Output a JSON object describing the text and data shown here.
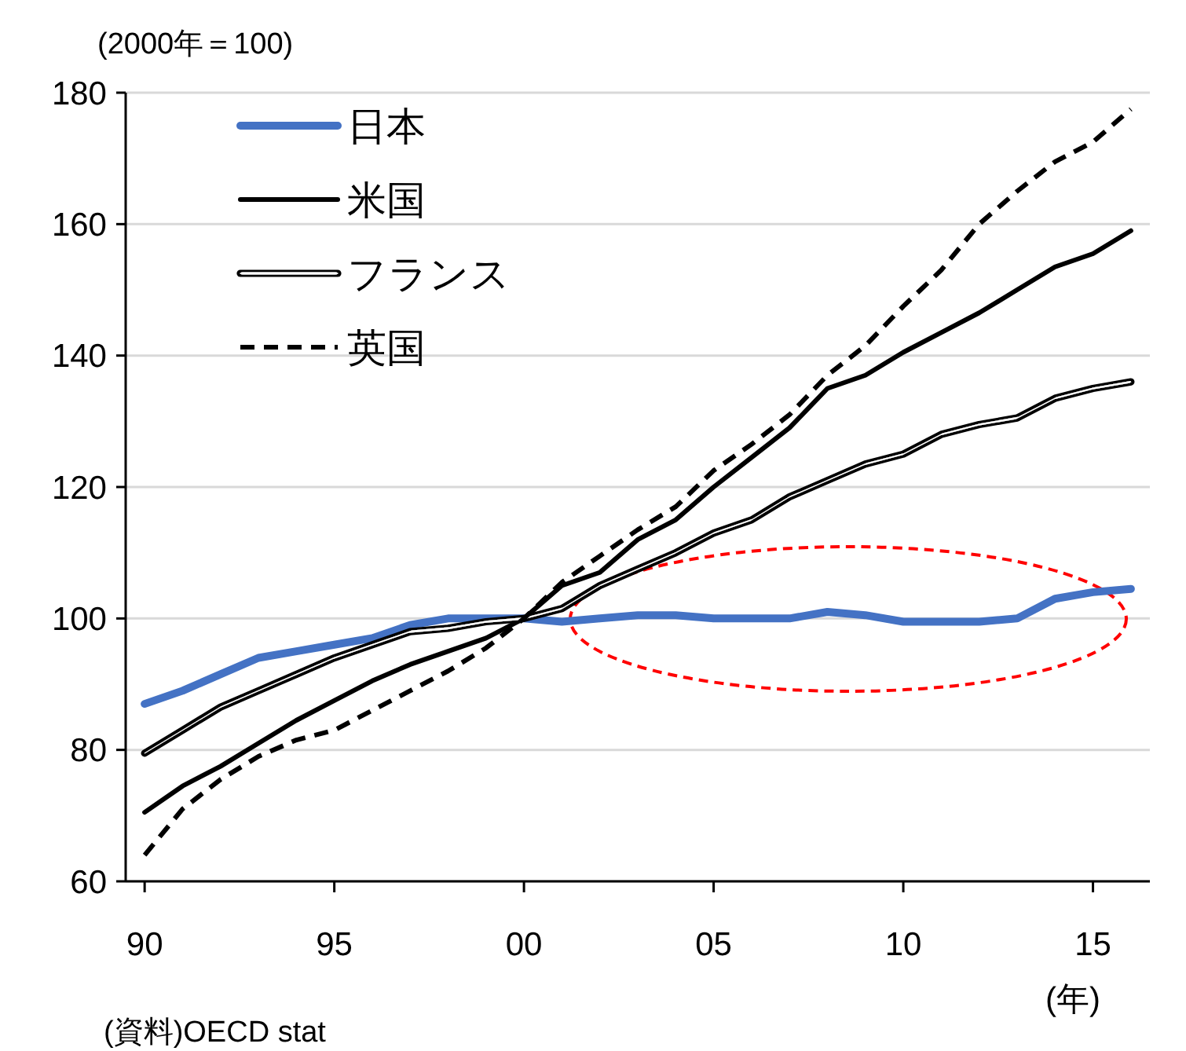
{
  "chart_data": {
    "type": "line",
    "ylabel": "(2000年＝100)",
    "xlabel": "(年)",
    "annotations": [
      "(資料)OECD stat"
    ],
    "x": [
      1990,
      1991,
      1992,
      1993,
      1994,
      1995,
      1996,
      1997,
      1998,
      1999,
      2000,
      2001,
      2002,
      2003,
      2004,
      2005,
      2006,
      2007,
      2008,
      2009,
      2010,
      2011,
      2012,
      2013,
      2014,
      2015,
      2016
    ],
    "xlim": [
      1989.5,
      2016.5
    ],
    "xticks": [
      {
        "value": 1990,
        "label": "90"
      },
      {
        "value": 1995,
        "label": "95"
      },
      {
        "value": 2000,
        "label": "00"
      },
      {
        "value": 2005,
        "label": "05"
      },
      {
        "value": 2010,
        "label": "10"
      },
      {
        "value": 2015,
        "label": "15"
      }
    ],
    "ylim": [
      60,
      180
    ],
    "yticks": [
      60,
      80,
      100,
      120,
      140,
      160,
      180
    ],
    "grid": "y",
    "legend": "top left",
    "series": [
      {
        "name": "日本",
        "color": "#4472c4",
        "line_style": "solid",
        "values": [
          87,
          89,
          91.5,
          94,
          95,
          96,
          97,
          99,
          100,
          100,
          100,
          99.5,
          100,
          100.5,
          100.5,
          100,
          100,
          100,
          101,
          100.5,
          99.5,
          99.5,
          99.5,
          100,
          103,
          104,
          104.5
        ]
      },
      {
        "name": "米国",
        "color": "#000000",
        "line_style": "solid",
        "values": [
          70.5,
          74.5,
          77.5,
          81,
          84.5,
          87.5,
          90.5,
          93,
          95,
          97,
          100,
          105,
          107,
          112,
          115,
          120,
          124.5,
          129,
          135,
          137,
          140.5,
          143.5,
          146.5,
          150,
          153.5,
          155.5,
          159
        ]
      },
      {
        "name": "フランス",
        "color": "#000000",
        "line_style": "solid",
        "values": [
          79.5,
          83,
          86.5,
          89,
          91.5,
          94,
          96,
          98,
          98.5,
          99.5,
          100,
          101.5,
          105,
          107.5,
          110,
          113,
          115,
          118.5,
          121,
          123.5,
          125,
          128,
          129.5,
          130.5,
          133.5,
          135,
          136
        ]
      },
      {
        "name": "英国",
        "color": "#000000",
        "line_style": "dashed",
        "values": [
          64,
          71,
          75.5,
          79,
          81.5,
          83,
          86,
          89,
          92,
          95.5,
          100,
          105.5,
          109.5,
          113.5,
          117,
          122.5,
          126.5,
          131,
          137,
          141.5,
          147.5,
          153,
          160,
          165,
          169.5,
          172.5,
          177.5
        ]
      }
    ]
  }
}
